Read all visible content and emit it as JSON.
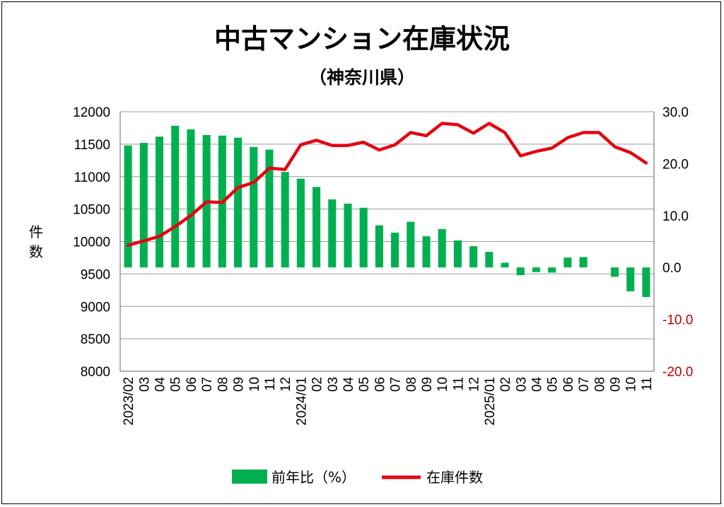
{
  "chart_data": {
    "type": "bar+line",
    "title": "中古マンション在庫状況",
    "subtitle": "（神奈川県）",
    "ylabel": "件数",
    "y_left_range": [
      8000,
      12000
    ],
    "y_left_ticks": [
      "12000",
      "11500",
      "11000",
      "10500",
      "10000",
      "9500",
      "9000",
      "8500",
      "8000"
    ],
    "y_right_range": [
      -20.0,
      30.0
    ],
    "y_right_ticks": [
      "30.0",
      "20.0",
      "10.0",
      "0.0",
      "-10.0",
      "-20.0"
    ],
    "categories": [
      "2023/02",
      "03",
      "04",
      "05",
      "06",
      "07",
      "08",
      "09",
      "10",
      "11",
      "12",
      "2024/01",
      "02",
      "03",
      "04",
      "05",
      "06",
      "07",
      "08",
      "09",
      "10",
      "11",
      "12",
      "2025/01",
      "02",
      "03",
      "04",
      "05",
      "06",
      "07",
      "08",
      "09",
      "10",
      "11"
    ],
    "series": [
      {
        "name": "前年比（%）",
        "type": "bar",
        "axis": "right",
        "color": "#00b050",
        "values": [
          23.5,
          24.0,
          25.2,
          27.3,
          26.6,
          25.5,
          25.4,
          25.0,
          23.2,
          22.7,
          18.4,
          17.1,
          15.5,
          13.1,
          12.3,
          11.5,
          8.1,
          6.7,
          8.8,
          6.0,
          7.4,
          5.2,
          4.1,
          3.0,
          0.9,
          -1.5,
          -0.9,
          -1.0,
          1.9,
          2.0,
          0.0,
          -1.8,
          -4.6,
          -5.7
        ]
      },
      {
        "name": "在庫件数",
        "type": "line",
        "axis": "left",
        "color": "#e30613",
        "values": [
          9940,
          10010,
          10080,
          10230,
          10400,
          10610,
          10600,
          10830,
          10910,
          11130,
          11110,
          11490,
          11560,
          11480,
          11480,
          11530,
          11410,
          11490,
          11680,
          11630,
          11820,
          11800,
          11670,
          11820,
          11680,
          11320,
          11390,
          11440,
          11600,
          11680,
          11680,
          11460,
          11370,
          11210
        ]
      }
    ],
    "legend_position": "bottom"
  }
}
